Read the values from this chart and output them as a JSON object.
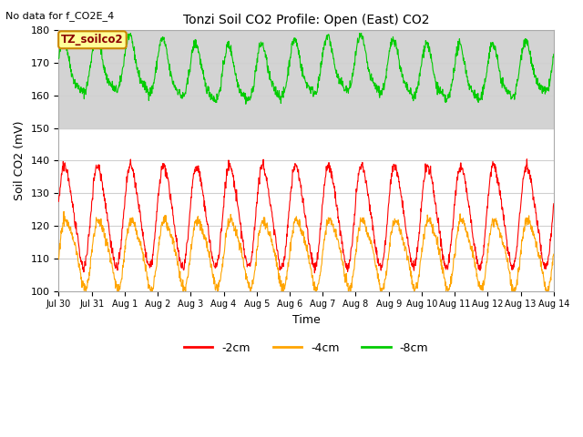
{
  "title": "Tonzi Soil CO2 Profile: Open (East) CO2",
  "subtitle": "No data for f_CO2E_4",
  "ylabel": "Soil CO2 (mV)",
  "xlabel": "Time",
  "ylim": [
    100,
    180
  ],
  "yticks": [
    100,
    110,
    120,
    130,
    140,
    150,
    160,
    170,
    180
  ],
  "xtick_labels": [
    "Jul 30",
    "Jul 31",
    "Aug 1",
    "Aug 2",
    "Aug 3",
    "Aug 4",
    "Aug 5",
    "Aug 6",
    "Aug 7",
    "Aug 8",
    "Aug 9",
    "Aug 10",
    "Aug 11",
    "Aug 12",
    "Aug 13",
    "Aug 14"
  ],
  "series": {
    "neg2cm": {
      "label": "-2cm",
      "color": "#ff0000"
    },
    "neg4cm": {
      "label": "-4cm",
      "color": "#ffa500"
    },
    "neg8cm": {
      "label": "-8cm",
      "color": "#00cc00"
    }
  },
  "legend_label": "TZ_soilco2",
  "legend_bg": "#ffff99",
  "legend_border": "#cc8800",
  "gray_band": [
    150,
    180
  ],
  "gray_color": "#d3d3d3",
  "background_color": "#ffffff",
  "grid_color": "#d0d0d0"
}
